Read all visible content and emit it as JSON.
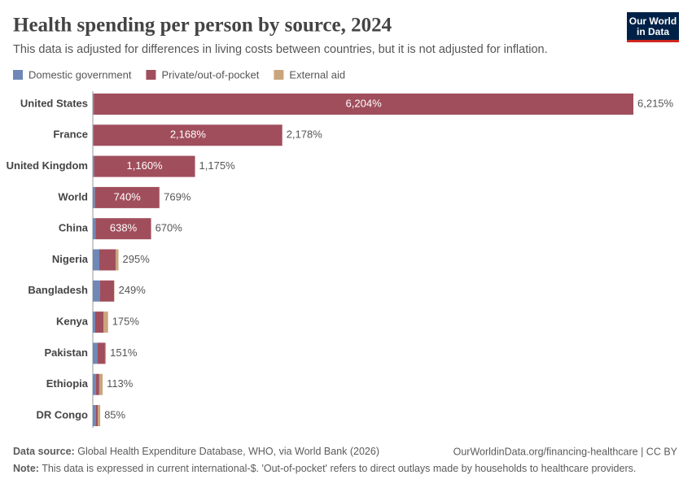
{
  "chart_data": {
    "type": "stacked-bar",
    "title": "Health spending per person by source, 2024",
    "subtitle": "This data is adjusted for differences in living costs between countries, but it is not adjusted for inflation.",
    "categories": [
      "United States",
      "France",
      "United Kingdom",
      "World",
      "China",
      "Nigeria",
      "Bangladesh",
      "Kenya",
      "Pakistan",
      "Ethiopia",
      "DR Congo"
    ],
    "series": [
      {
        "name": "Domestic government",
        "color": "#6f88b8",
        "values": [
          11,
          10,
          15,
          25,
          32,
          75,
          84,
          28,
          56,
          37,
          37
        ]
      },
      {
        "name": "Private/out-of-pocket",
        "color": "#a04e5c",
        "values": [
          6204,
          2168,
          1160,
          740,
          638,
          187,
          160,
          94,
          84,
          37,
          19
        ],
        "value_labels": [
          "6,204%",
          "2,168%",
          "1,160%",
          "740%",
          "638%",
          null,
          null,
          null,
          null,
          null,
          null
        ]
      },
      {
        "name": "External aid",
        "color": "#c9a57e",
        "values": [
          0,
          0,
          0,
          4,
          0,
          33,
          5,
          53,
          11,
          39,
          29
        ]
      }
    ],
    "totals": [
      6215,
      2178,
      1175,
      769,
      670,
      295,
      249,
      175,
      151,
      113,
      85
    ],
    "total_labels": [
      "6,215%",
      "2,178%",
      "1,175%",
      "769%",
      "670%",
      "295%",
      "249%",
      "175%",
      "151%",
      "113%",
      "85%"
    ],
    "source_label": "Data source:",
    "source": "Global Health Expenditure Database, WHO, via World Bank (2026)",
    "url": "OurWorldinData.org/financing-healthcare | CC BY",
    "note_label": "Note:",
    "note": "This data is expressed in current international-$. 'Out-of-pocket' refers to direct outlays made by households to healthcare providers.",
    "logo": [
      "Our World",
      "in Data"
    ]
  }
}
